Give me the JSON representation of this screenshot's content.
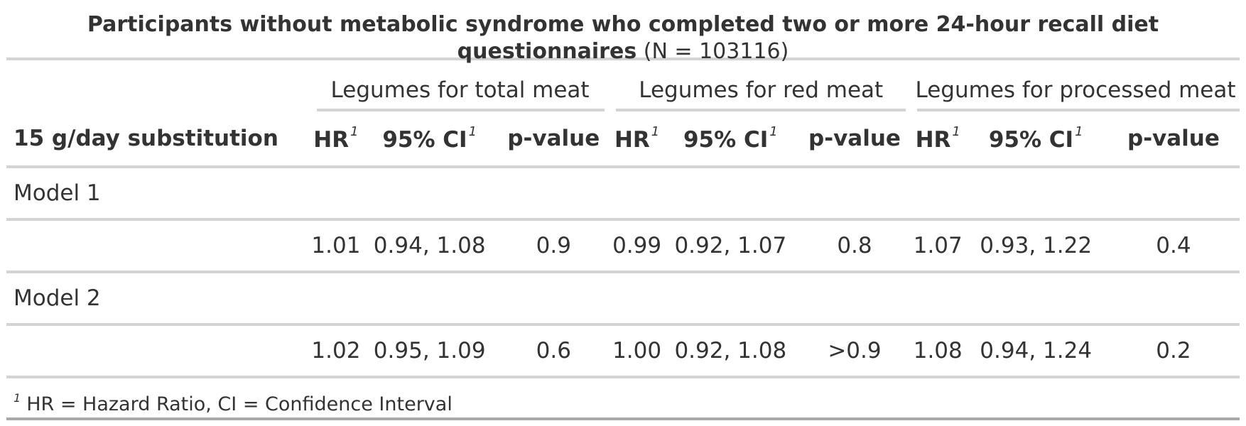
{
  "title": {
    "bold_text": "Participants without metabolic syndrome who completed two or more 24-hour recall diet questionnaires",
    "normal_text": "(N = 103116)"
  },
  "spanners": [
    "Legumes for total meat",
    "Legumes for red meat",
    "Legumes for processed meat"
  ],
  "columns": {
    "label": "15 g/day substitution",
    "hr": "HR",
    "ci": "95% CI",
    "p": "p-value",
    "footnote_marker": "1"
  },
  "groups": [
    {
      "label": "Model 1",
      "values": [
        "1.01",
        "0.94, 1.08",
        "0.9",
        "0.99",
        "0.92, 1.07",
        "0.8",
        "1.07",
        "0.93, 1.22",
        "0.4"
      ]
    },
    {
      "label": "Model 2",
      "values": [
        "1.02",
        "0.95, 1.09",
        "0.6",
        "1.00",
        "0.92, 1.08",
        ">0.9",
        "1.08",
        "0.94, 1.24",
        "0.2"
      ]
    }
  ],
  "footnote": {
    "marker": "1",
    "text": "HR = Hazard Ratio, CI = Confidence Interval"
  },
  "colors": {
    "text": "#333333",
    "rule": "#d3d3d3",
    "bottom_rule": "#a9a9a9"
  }
}
